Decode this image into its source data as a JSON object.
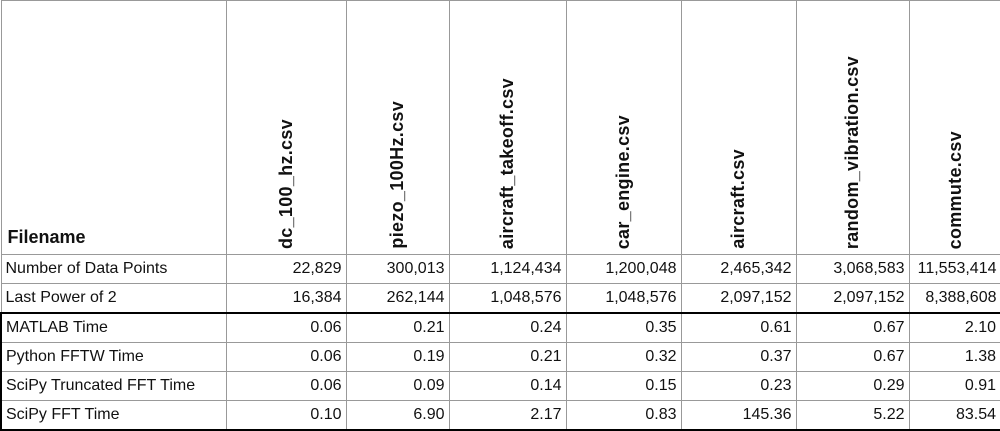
{
  "table": {
    "header": [
      "Filename",
      "dc_100_hz.csv",
      "piezo_100Hz.csv",
      "aircraft_takeoff.csv",
      "car_engine.csv",
      "aircraft.csv",
      "random_vibration.csv",
      "commute.csv"
    ],
    "rows": [
      [
        "Number of Data Points",
        "22,829",
        "300,013",
        "1,124,434",
        "1,200,048",
        "2,465,342",
        "3,068,583",
        "11,553,414"
      ],
      [
        "Last Power of 2",
        "16,384",
        "262,144",
        "1,048,576",
        "1,048,576",
        "2,097,152",
        "2,097,152",
        "8,388,608"
      ],
      [
        "MATLAB Time",
        "0.06",
        "0.21",
        "0.24",
        "0.35",
        "0.61",
        "0.67",
        "2.10"
      ],
      [
        "Python FFTW Time",
        "0.06",
        "0.19",
        "0.21",
        "0.32",
        "0.37",
        "0.67",
        "1.38"
      ],
      [
        "SciPy Truncated FFT Time",
        "0.06",
        "0.09",
        "0.14",
        "0.15",
        "0.23",
        "0.29",
        "0.91"
      ],
      [
        "SciPy FFT Time",
        "0.10",
        "6.90",
        "2.17",
        "0.83",
        "145.36",
        "5.22",
        "83.54"
      ]
    ]
  }
}
